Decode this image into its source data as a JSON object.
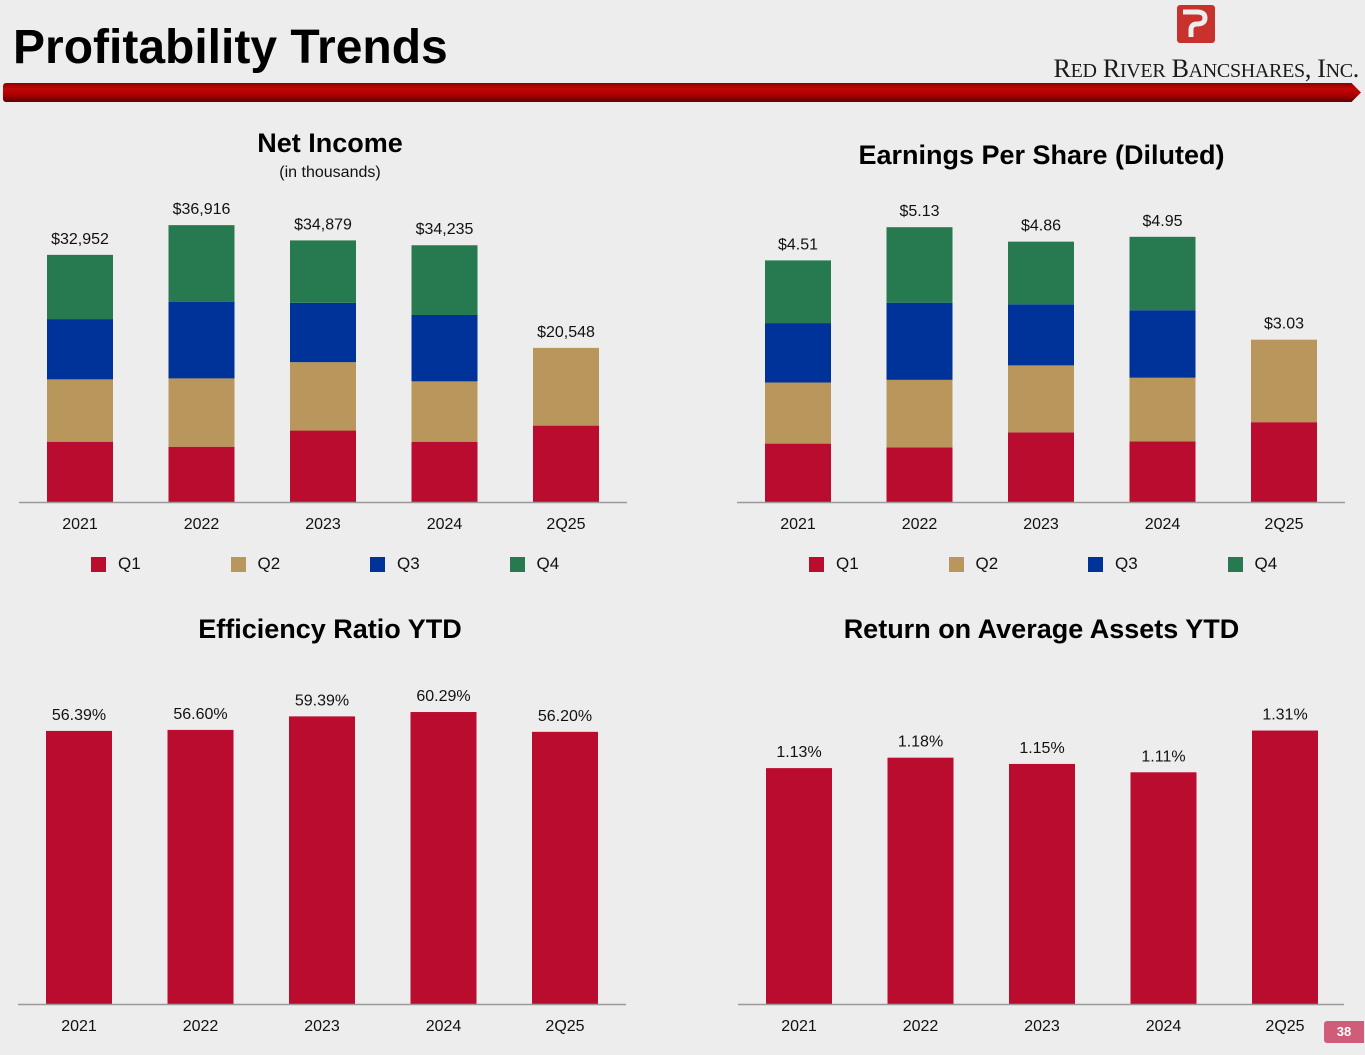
{
  "header": {
    "title": "Profitability Trends",
    "company": "Red River Bancshares, Inc.",
    "logo_icon": "red-river-logo-icon",
    "brand_color": "#C8102E"
  },
  "page_number": "38",
  "colors": {
    "Q1": "#BA0C2F",
    "Q2": "#B9965B",
    "Q3": "#00339A",
    "Q4": "#277A50",
    "single": "#BA0C2F",
    "axis": "#9a9a9a"
  },
  "chart_data": [
    {
      "id": "net-income",
      "type": "bar",
      "stacked": true,
      "title": "Net Income",
      "subtitle": "(in thousands)",
      "xlabel": "",
      "ylabel": "",
      "categories": [
        "2021",
        "2022",
        "2023",
        "2024",
        "2Q25"
      ],
      "series": [
        {
          "name": "Q1",
          "values": [
            8040,
            7370,
            9525,
            8040,
            10185
          ]
        },
        {
          "name": "Q2",
          "values": [
            8310,
            9110,
            9120,
            8045,
            10363
          ]
        },
        {
          "name": "Q3",
          "values": [
            8040,
            10190,
            7914,
            8850,
            0
          ]
        },
        {
          "name": "Q4",
          "values": [
            8562,
            10246,
            8320,
            9300,
            0
          ]
        }
      ],
      "totals": [
        "$32,952",
        "$36,916",
        "$34,879",
        "$34,235",
        "$20,548"
      ],
      "total_values": [
        32952,
        36916,
        34879,
        34235,
        20548
      ],
      "ylim": [
        0,
        40000
      ],
      "grid": false,
      "legend": [
        "Q1",
        "Q2",
        "Q3",
        "Q4"
      ],
      "legend_position": "bottom"
    },
    {
      "id": "eps",
      "type": "bar",
      "stacked": true,
      "title": "Earnings Per Share (Diluted)",
      "subtitle": "",
      "xlabel": "",
      "ylabel": "",
      "categories": [
        "2021",
        "2022",
        "2023",
        "2024",
        "2Q25"
      ],
      "series": [
        {
          "name": "Q1",
          "values": [
            1.09,
            1.02,
            1.3,
            1.13,
            1.49
          ]
        },
        {
          "name": "Q2",
          "values": [
            1.14,
            1.26,
            1.25,
            1.19,
            1.54
          ]
        },
        {
          "name": "Q3",
          "values": [
            1.11,
            1.44,
            1.14,
            1.26,
            0
          ]
        },
        {
          "name": "Q4",
          "values": [
            1.17,
            1.41,
            1.17,
            1.37,
            0
          ]
        }
      ],
      "totals": [
        "$4.51",
        "$5.13",
        "$4.86",
        "$4.95",
        "$3.03"
      ],
      "total_values": [
        4.51,
        5.13,
        4.86,
        4.95,
        3.03
      ],
      "ylim": [
        0,
        5.6
      ],
      "grid": false,
      "legend": [
        "Q1",
        "Q2",
        "Q3",
        "Q4"
      ],
      "legend_position": "bottom"
    },
    {
      "id": "efficiency-ratio",
      "type": "bar",
      "stacked": false,
      "title": "Efficiency Ratio YTD",
      "subtitle": "",
      "xlabel": "",
      "ylabel": "",
      "categories": [
        "2021",
        "2022",
        "2023",
        "2024",
        "2Q25"
      ],
      "values": [
        56.39,
        56.6,
        59.39,
        60.29,
        56.2
      ],
      "labels": [
        "56.39%",
        "56.60%",
        "59.39%",
        "60.29%",
        "56.20%"
      ],
      "ylim": [
        0,
        70
      ],
      "grid": false
    },
    {
      "id": "roaa",
      "type": "bar",
      "stacked": false,
      "title": "Return on Average Assets YTD",
      "subtitle": "",
      "xlabel": "",
      "ylabel": "",
      "categories": [
        "2021",
        "2022",
        "2023",
        "2024",
        "2Q25"
      ],
      "values": [
        1.13,
        1.18,
        1.15,
        1.11,
        1.31
      ],
      "labels": [
        "1.13%",
        "1.18%",
        "1.15%",
        "1.11%",
        "1.31%"
      ],
      "ylim": [
        0,
        1.6
      ],
      "grid": false
    }
  ]
}
